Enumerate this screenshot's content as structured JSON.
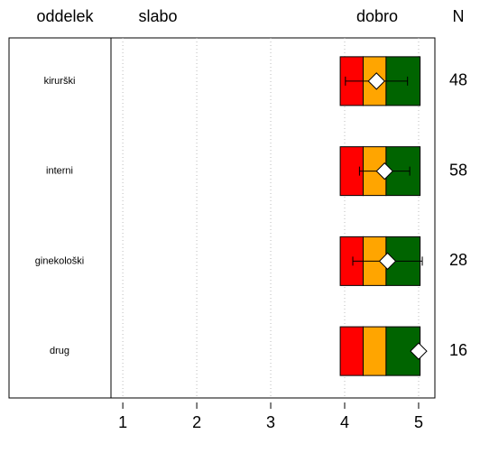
{
  "chart_data": {
    "type": "rating-bar",
    "headers": [
      "oddelek",
      "slabo",
      "dobro",
      "N"
    ],
    "categories": [
      "kirurški",
      "interni",
      "ginekološki",
      "drug"
    ],
    "values": [
      4.43,
      4.54,
      4.58,
      5.0
    ],
    "errors": [
      0.42,
      0.34,
      0.47,
      null
    ],
    "n": [
      48,
      58,
      28,
      16
    ],
    "bands": [
      3.94,
      4.25,
      4.56,
      5.02
    ],
    "band_colors": [
      "#ff0000",
      "#ffa500",
      "#006400"
    ],
    "xlim": [
      0.84,
      5.22
    ],
    "xticks": [
      1,
      2,
      3,
      4,
      5
    ],
    "grid": true
  }
}
